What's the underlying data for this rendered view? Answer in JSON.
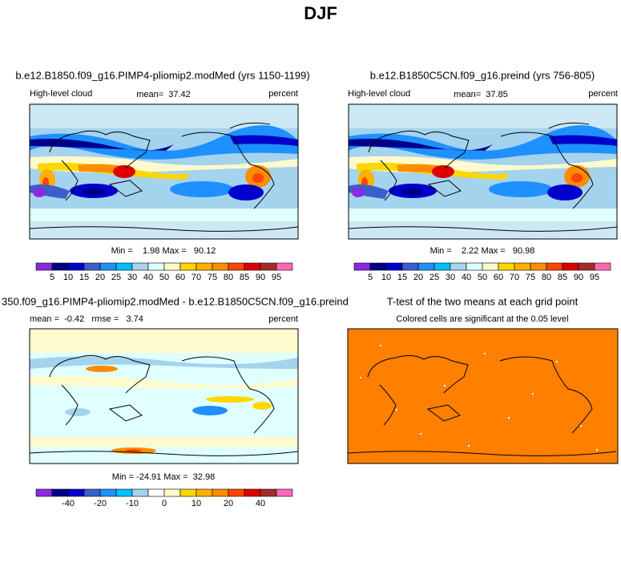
{
  "title": "DJF",
  "panels": [
    {
      "title": "b.e12.B1850.f09_g16.PIMP4-pliomip2.modMed (yrs 1150-1199)",
      "left_label": "High-level cloud",
      "center_label": "mean=  37.42",
      "right_label": "percent",
      "min_max": "Min =    1.98 Max =   90.12",
      "colorbar": {
        "colors": [
          "#8a2be2",
          "#00008b",
          "#0000cd",
          "#3a5fcd",
          "#1e90ff",
          "#00bfff",
          "#a4d3ee",
          "#e0ffff",
          "#fffacd",
          "#ffd700",
          "#ffb000",
          "#ff8c00",
          "#ff4500",
          "#dd0000",
          "#a52a2a",
          "#ff69b4"
        ],
        "labels": [
          "5",
          "10",
          "15",
          "20",
          "25",
          "30",
          "40",
          "50",
          "60",
          "70",
          "75",
          "80",
          "85",
          "90",
          "95"
        ]
      }
    },
    {
      "title": "b.e12.B1850C5CN.f09_g16.preind (yrs 756-805)",
      "left_label": "High-level cloud",
      "center_label": "mean=  37.85",
      "right_label": "percent",
      "min_max": "Min =    2.22 Max =   90.98",
      "colorbar": {
        "colors": [
          "#8a2be2",
          "#00008b",
          "#0000cd",
          "#3a5fcd",
          "#1e90ff",
          "#00bfff",
          "#a4d3ee",
          "#e0ffff",
          "#fffacd",
          "#ffd700",
          "#ffb000",
          "#ff8c00",
          "#ff4500",
          "#dd0000",
          "#a52a2a",
          "#ff69b4"
        ],
        "labels": [
          "5",
          "10",
          "15",
          "20",
          "25",
          "30",
          "40",
          "50",
          "60",
          "70",
          "75",
          "80",
          "85",
          "90",
          "95"
        ]
      }
    },
    {
      "title": "350.f09_g16.PIMP4-pliomip2.modMed - b.e12.B1850C5CN.f09_g16.preind",
      "left_label": "mean =  -0.42   rmse =   3.74",
      "right_label": "percent",
      "min_max": "Min = -24.91 Max =  32.98",
      "colorbar": {
        "colors": [
          "#8a2be2",
          "#00008b",
          "#0000cd",
          "#3a5fcd",
          "#1e90ff",
          "#00bfff",
          "#a4d3ee",
          "#ffffff",
          "#fffacd",
          "#ffd700",
          "#ffb000",
          "#ff8c00",
          "#ff4500",
          "#dd0000",
          "#a52a2a",
          "#ff69b4"
        ],
        "labels": [
          "-40",
          "-20",
          "-10",
          "0",
          "10",
          "20",
          "40"
        ]
      }
    },
    {
      "title": "T-test of the two means at each grid point",
      "subtitle": "Colored cells are significant at the 0.05 level"
    }
  ]
}
